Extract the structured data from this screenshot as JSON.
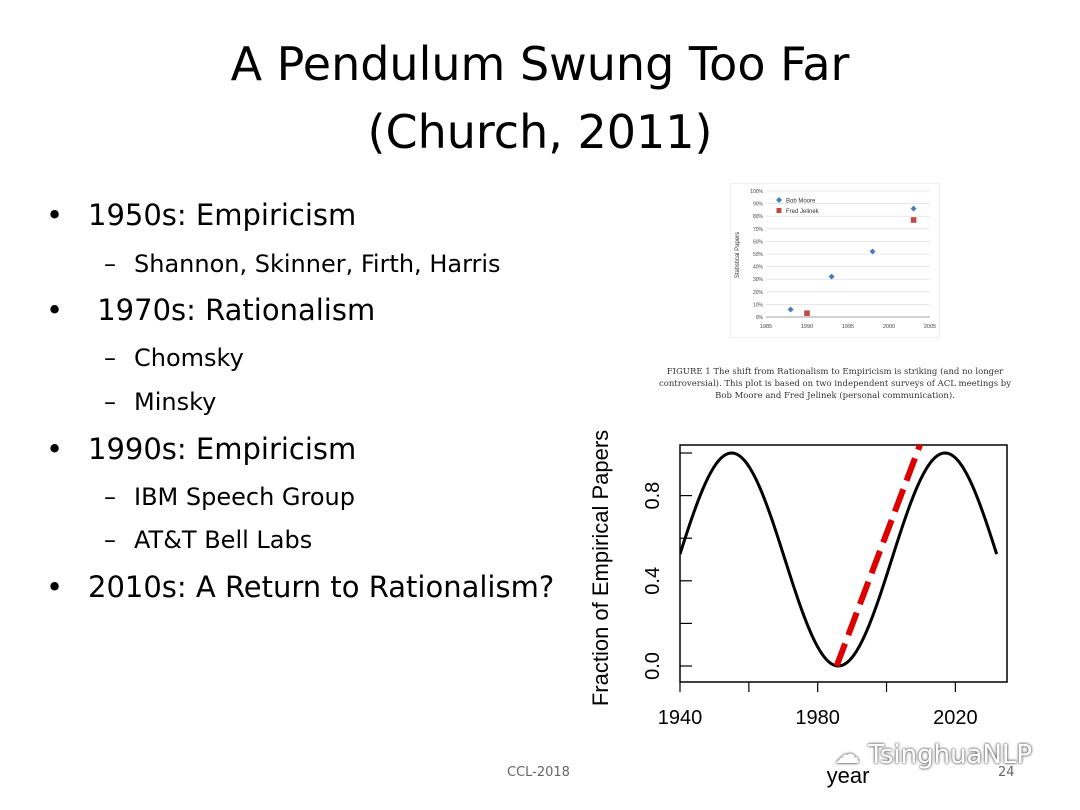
{
  "slide": {
    "title_line1": "A Pendulum Swung Too Far",
    "title_line2": "(Church, 2011)",
    "footer_left": "CCL-2018",
    "page_number": "24",
    "watermark": "TsinghuaNLP",
    "bullets": [
      {
        "text": "1950s: Empiricism",
        "subs": [
          "Shannon, Skinner, Firth, Harris"
        ]
      },
      {
        "text": " 1970s: Rationalism",
        "subs": [
          "Chomsky",
          "Minsky"
        ]
      },
      {
        "text": "1990s: Empiricism",
        "subs": [
          "IBM Speech Group",
          "AT&T Bell Labs"
        ]
      },
      {
        "text": "2010s: A Return to Rationalism?",
        "subs": []
      }
    ],
    "caption": "FIGURE 1  The shift from Rationalism to Empiricism is striking (and no longer controversial). This plot is based on two independent surveys of ACL meetings by Bob Moore and Fred Jelinek (personal communication)."
  },
  "chart_data": [
    {
      "type": "scatter",
      "ylabel": "Statistical Papers",
      "xlim": [
        1985,
        2005
      ],
      "ylim": [
        0,
        100
      ],
      "x_ticks": [
        "1985",
        "1990",
        "1995",
        "2000",
        "2005"
      ],
      "y_ticks": [
        "0%",
        "10%",
        "20%",
        "30%",
        "40%",
        "50%",
        "60%",
        "70%",
        "80%",
        "90%",
        "100%"
      ],
      "legend_position": "top-left",
      "grid": true,
      "series": [
        {
          "name": "Bob Moore",
          "color": "#4a7ebb",
          "marker": "diamond",
          "points": [
            [
              1988,
              6
            ],
            [
              1993,
              32
            ],
            [
              1998,
              52
            ],
            [
              2003,
              86
            ]
          ]
        },
        {
          "name": "Fred Jelinek",
          "color": "#be4b48",
          "marker": "square",
          "points": [
            [
              1990,
              3
            ],
            [
              2003,
              77
            ]
          ]
        }
      ]
    },
    {
      "type": "line",
      "xlabel": "year",
      "ylabel": "Fraction of Empirical Papers",
      "xlim": [
        1940,
        2035
      ],
      "ylim": [
        0,
        1
      ],
      "x_ticks": [
        "1940",
        "1980",
        "2020"
      ],
      "y_ticks": [
        "0.0",
        "0.4",
        "0.8"
      ],
      "series": [
        {
          "color": "#000000",
          "style": "solid",
          "function": "pendulum",
          "period_years": 62,
          "peaks": [
            1955,
            2016
          ],
          "trough": 1985
        },
        {
          "color": "#dd0000",
          "style": "dashed",
          "points": [
            [
              1985.5,
              0.0
            ],
            [
              2010,
              1.05
            ]
          ]
        }
      ]
    }
  ]
}
